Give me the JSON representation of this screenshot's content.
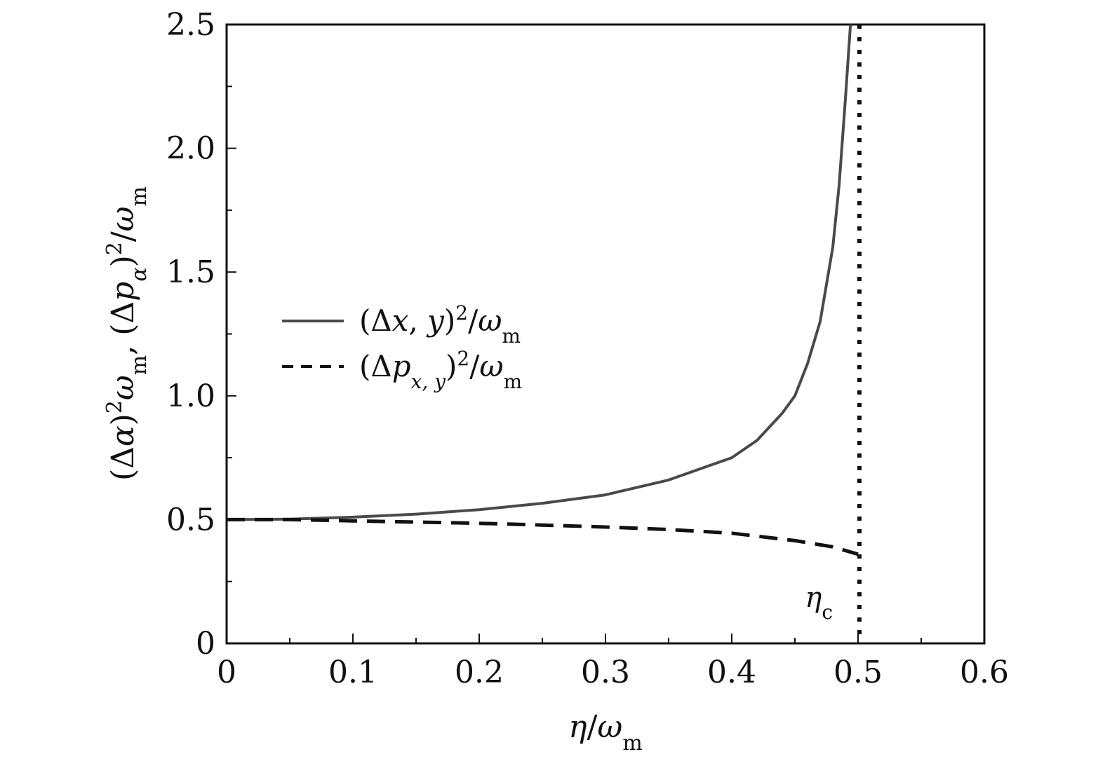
{
  "chart_data": {
    "type": "line",
    "xlabel": "η/ω_m",
    "ylabel": "(Δα)²ω_m, (Δp_α)²/ω_m",
    "xlim": [
      0,
      0.6
    ],
    "ylim": [
      0,
      2.5
    ],
    "x_ticks": [
      "0",
      "0.1",
      "0.2",
      "0.3",
      "0.4",
      "0.5",
      "0.6"
    ],
    "y_ticks": [
      "0",
      "0.5",
      "1.0",
      "1.5",
      "2.0",
      "2.5"
    ],
    "grid": false,
    "legend_position": "center-left",
    "series": [
      {
        "name": "(Δx, y)²/ω_m",
        "style": "solid",
        "color": "#4a4a4a",
        "x": [
          0,
          0.05,
          0.1,
          0.15,
          0.2,
          0.25,
          0.3,
          0.35,
          0.4,
          0.42,
          0.44,
          0.45,
          0.46,
          0.47,
          0.48,
          0.485,
          0.49,
          0.494
        ],
        "y": [
          0.5,
          0.502,
          0.51,
          0.522,
          0.54,
          0.566,
          0.6,
          0.66,
          0.75,
          0.82,
          0.93,
          1.0,
          1.13,
          1.3,
          1.6,
          1.85,
          2.2,
          2.5
        ]
      },
      {
        "name": "(Δp_{x, y})²/ω_m",
        "style": "dashed",
        "color": "#111111",
        "x": [
          0,
          0.05,
          0.1,
          0.15,
          0.2,
          0.25,
          0.3,
          0.35,
          0.4,
          0.45,
          0.48,
          0.5
        ],
        "y": [
          0.5,
          0.5,
          0.495,
          0.49,
          0.485,
          0.478,
          0.47,
          0.46,
          0.445,
          0.415,
          0.39,
          0.36
        ]
      }
    ],
    "annotations": [
      {
        "text": "η_c",
        "x": 0.5,
        "style": "dotted vertical line"
      }
    ]
  }
}
